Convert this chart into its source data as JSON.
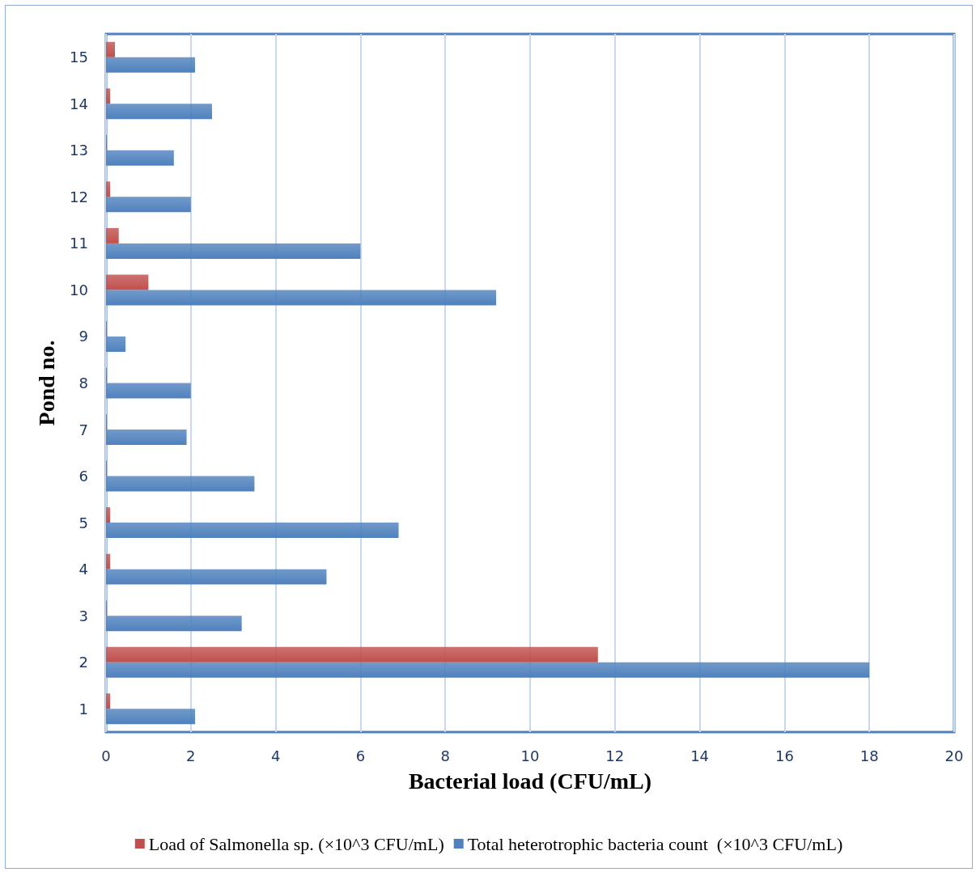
{
  "chart_data": {
    "type": "bar",
    "orientation": "horizontal",
    "xlabel": "Bacterial load (CFU/mL)",
    "ylabel": "Pond no.",
    "categories": [
      "15",
      "14",
      "13",
      "12",
      "11",
      "10",
      "9",
      "8",
      "7",
      "6",
      "5",
      "4",
      "3",
      "2",
      "1"
    ],
    "series": [
      {
        "name": "Load of Salmonella sp. (×10^3 CFU/mL)",
        "color": "#c0504d",
        "values": [
          0.21,
          0.1,
          0.02,
          0.1,
          0.3,
          1.0,
          0.02,
          0.02,
          0.02,
          0.02,
          0.1,
          0.1,
          0.02,
          11.6,
          0.1
        ]
      },
      {
        "name": "Total heterotrophic bacteria count  (×10^3 CFU/mL)",
        "color": "#4f81bd",
        "values": [
          2.1,
          2.5,
          1.6,
          2.0,
          6.0,
          9.2,
          0.46,
          2.0,
          1.9,
          3.5,
          6.9,
          5.2,
          3.2,
          18,
          2.1
        ]
      }
    ],
    "xlim": [
      0,
      20
    ],
    "xticks": [
      0,
      2,
      4,
      6,
      8,
      10,
      12,
      14,
      16,
      18,
      20
    ],
    "grid": "x",
    "legend": "bottom"
  }
}
